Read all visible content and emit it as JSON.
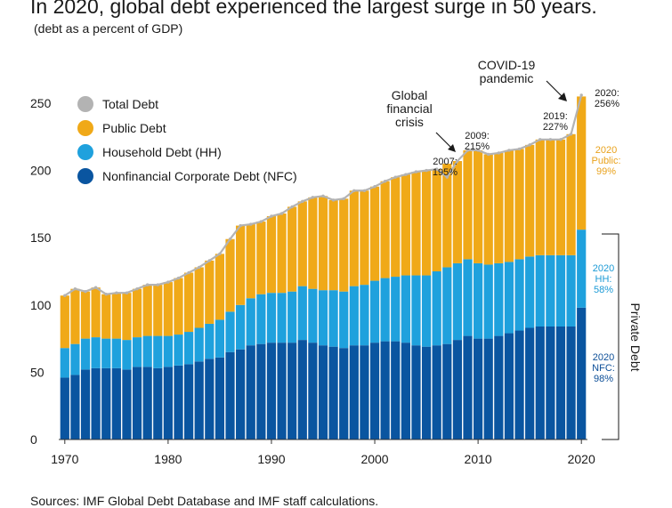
{
  "title": "In 2020, global debt experienced the largest surge in 50 years.",
  "subtitle": "(debt as a percent of GDP)",
  "source": "Sources: IMF Global Debt Database and IMF staff calculations.",
  "colors": {
    "total": "#b3b3b3",
    "public": "#f0a918",
    "household": "#1fa1dd",
    "nfc": "#0a55a0",
    "public_text": "#e9a21c",
    "household_text": "#1b9ad6",
    "nfc_text": "#0d4f98"
  },
  "chart_data": {
    "type": "area",
    "title": "In 2020, global debt experienced the largest surge in 50 years.",
    "subtitle": "(debt as a percent of GDP)",
    "years": [
      1970,
      1971,
      1972,
      1973,
      1974,
      1975,
      1976,
      1977,
      1978,
      1979,
      1980,
      1981,
      1982,
      1983,
      1984,
      1985,
      1986,
      1987,
      1988,
      1989,
      1990,
      1991,
      1992,
      1993,
      1994,
      1995,
      1996,
      1997,
      1998,
      1999,
      2000,
      2001,
      2002,
      2003,
      2004,
      2005,
      2006,
      2007,
      2008,
      2009,
      2010,
      2011,
      2012,
      2013,
      2014,
      2015,
      2016,
      2017,
      2018,
      2019,
      2020
    ],
    "xlim": [
      1970,
      2020
    ],
    "ylim": [
      0,
      250
    ],
    "x_ticks": [
      "1970",
      "1980",
      "1990",
      "2000",
      "2010",
      "2020"
    ],
    "y_ticks": [
      "0",
      "50",
      "100",
      "150",
      "200",
      "250"
    ],
    "legend_position": "top-left",
    "series": [
      {
        "name": "Nonfinancial Corporate Debt (NFC)",
        "key": "nfc",
        "values": [
          46,
          48,
          52,
          53,
          53,
          53,
          52,
          54,
          54,
          53,
          54,
          55,
          56,
          58,
          60,
          61,
          65,
          67,
          70,
          71,
          72,
          72,
          72,
          74,
          72,
          70,
          69,
          68,
          70,
          70,
          72,
          73,
          73,
          72,
          70,
          69,
          70,
          71,
          74,
          77,
          75,
          75,
          77,
          79,
          81,
          83,
          84,
          84,
          84,
          84,
          98
        ]
      },
      {
        "name": "Household Debt (HH)",
        "key": "household",
        "values": [
          22,
          23,
          23,
          23,
          22,
          22,
          22,
          22,
          23,
          24,
          23,
          23,
          24,
          25,
          26,
          28,
          30,
          33,
          35,
          37,
          37,
          37,
          38,
          40,
          40,
          41,
          42,
          42,
          44,
          45,
          46,
          47,
          48,
          50,
          52,
          53,
          55,
          57,
          57,
          57,
          56,
          55,
          54,
          53,
          53,
          53,
          53,
          53,
          53,
          53,
          58
        ]
      },
      {
        "name": "Public Debt",
        "key": "public",
        "values": [
          39,
          41,
          35,
          37,
          33,
          34,
          35,
          36,
          38,
          38,
          40,
          42,
          44,
          45,
          47,
          49,
          54,
          59,
          55,
          54,
          57,
          59,
          63,
          63,
          68,
          70,
          67,
          69,
          71,
          70,
          70,
          72,
          74,
          75,
          77,
          78,
          76,
          77,
          76,
          81,
          84,
          82,
          82,
          83,
          82,
          83,
          86,
          86,
          86,
          90,
          99
        ]
      },
      {
        "name": "Total Debt",
        "key": "total",
        "values": [
          107,
          112,
          110,
          113,
          108,
          109,
          109,
          112,
          115,
          115,
          117,
          120,
          124,
          128,
          133,
          138,
          149,
          159,
          160,
          162,
          166,
          168,
          173,
          177,
          180,
          181,
          178,
          179,
          185,
          185,
          188,
          192,
          195,
          197,
          199,
          200,
          201,
          195,
          207,
          215,
          215,
          212,
          213,
          215,
          216,
          219,
          223,
          223,
          223,
          227,
          256
        ]
      }
    ],
    "legend": [
      "Total Debt",
      "Public Debt",
      "Household Debt (HH)",
      "Nonfinancial Corporate Debt (NFC)"
    ],
    "annotations": {
      "gfc": [
        "Global",
        "financial",
        "crisis"
      ],
      "covid": [
        "COVID-19",
        "pandemic"
      ],
      "y2007": [
        "2007:",
        "195%"
      ],
      "y2009": [
        "2009:",
        "215%"
      ],
      "y2019": [
        "2019:",
        "227%"
      ],
      "y2020": [
        "2020:",
        "256%"
      ],
      "public2020": [
        "2020",
        "Public:",
        "99%"
      ],
      "hh2020": [
        "2020",
        "HH:",
        "58%"
      ],
      "nfc2020": [
        "2020",
        "NFC:",
        "98%"
      ],
      "private_debt": "Private Debt"
    }
  }
}
